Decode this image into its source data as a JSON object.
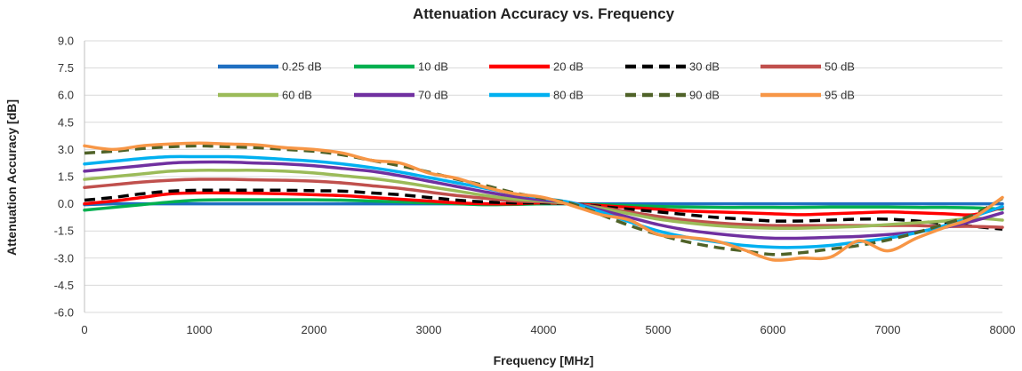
{
  "chart_data": {
    "type": "line",
    "title": "Attenuation Accuracy vs. Frequency",
    "xlabel": "Frequency [MHz]",
    "ylabel": "Attenuation Accuracy [dB]",
    "xlim": [
      0,
      8000
    ],
    "ylim": [
      -6.0,
      9.0
    ],
    "x_ticks": [
      "0",
      "1000",
      "2000",
      "3000",
      "4000",
      "5000",
      "6000",
      "7000",
      "8000"
    ],
    "y_ticks": [
      "9.0",
      "7.5",
      "6.0",
      "4.5",
      "3.0",
      "1.5",
      "0.0",
      "-1.5",
      "-3.0",
      "-4.5",
      "-6.0"
    ],
    "grid": "horizontal",
    "legend_position": "top-center",
    "x": [
      0,
      250,
      500,
      750,
      1000,
      1250,
      1500,
      1750,
      2000,
      2250,
      2500,
      2750,
      3000,
      3250,
      3500,
      3750,
      4000,
      4250,
      4500,
      4750,
      5000,
      5250,
      5500,
      5750,
      6000,
      6250,
      6500,
      6750,
      7000,
      7250,
      7500,
      7750,
      8000
    ],
    "series": [
      {
        "name": "0.25 dB",
        "color": "#1f6fc1",
        "dash": "solid",
        "values": [
          -0.05,
          0.0,
          0.0,
          0.0,
          0.0,
          0.0,
          0.0,
          0.0,
          0.0,
          0.0,
          0.0,
          0.0,
          0.0,
          0.0,
          0.0,
          0.0,
          0.0,
          0.0,
          0.0,
          0.0,
          0.0,
          0.0,
          0.0,
          0.0,
          0.0,
          0.0,
          0.0,
          0.0,
          0.0,
          0.0,
          0.0,
          0.0,
          0.0
        ]
      },
      {
        "name": "10 dB",
        "color": "#00b050",
        "dash": "solid",
        "values": [
          -0.35,
          -0.2,
          -0.05,
          0.1,
          0.2,
          0.22,
          0.22,
          0.22,
          0.22,
          0.2,
          0.15,
          0.1,
          0.05,
          0.0,
          -0.05,
          -0.03,
          0.0,
          0.0,
          -0.05,
          -0.1,
          -0.15,
          -0.18,
          -0.2,
          -0.2,
          -0.2,
          -0.2,
          -0.18,
          -0.18,
          -0.18,
          -0.2,
          -0.2,
          -0.22,
          -0.3
        ]
      },
      {
        "name": "20 dB",
        "color": "#ff0000",
        "dash": "solid",
        "values": [
          0.0,
          0.15,
          0.35,
          0.55,
          0.6,
          0.6,
          0.58,
          0.55,
          0.5,
          0.45,
          0.35,
          0.25,
          0.15,
          0.05,
          0.0,
          0.0,
          0.05,
          0.0,
          -0.1,
          -0.2,
          -0.3,
          -0.4,
          -0.45,
          -0.5,
          -0.55,
          -0.6,
          -0.55,
          -0.5,
          -0.45,
          -0.5,
          -0.55,
          -0.6,
          -0.2
        ]
      },
      {
        "name": "30 dB",
        "color": "#000000",
        "dash": "dash",
        "values": [
          0.2,
          0.35,
          0.55,
          0.7,
          0.75,
          0.75,
          0.75,
          0.75,
          0.72,
          0.7,
          0.6,
          0.5,
          0.35,
          0.2,
          0.1,
          0.05,
          0.05,
          0.0,
          -0.15,
          -0.3,
          -0.45,
          -0.6,
          -0.75,
          -0.85,
          -0.95,
          -0.95,
          -0.9,
          -0.85,
          -0.85,
          -0.95,
          -1.1,
          -1.25,
          -1.4
        ]
      },
      {
        "name": "50 dB",
        "color": "#c0504d",
        "dash": "solid",
        "values": [
          0.9,
          1.05,
          1.2,
          1.3,
          1.35,
          1.35,
          1.32,
          1.3,
          1.25,
          1.15,
          1.0,
          0.85,
          0.65,
          0.45,
          0.3,
          0.15,
          0.1,
          0.0,
          -0.2,
          -0.45,
          -0.7,
          -0.9,
          -1.05,
          -1.15,
          -1.2,
          -1.2,
          -1.2,
          -1.2,
          -1.2,
          -1.2,
          -1.25,
          -1.25,
          -1.3
        ]
      },
      {
        "name": "60 dB",
        "color": "#9bbb59",
        "dash": "solid",
        "values": [
          1.35,
          1.5,
          1.65,
          1.8,
          1.85,
          1.85,
          1.85,
          1.8,
          1.7,
          1.55,
          1.4,
          1.2,
          0.95,
          0.7,
          0.45,
          0.25,
          0.15,
          0.0,
          -0.25,
          -0.55,
          -0.85,
          -1.05,
          -1.2,
          -1.3,
          -1.35,
          -1.35,
          -1.3,
          -1.25,
          -1.15,
          -1.05,
          -0.95,
          -0.8,
          -0.9
        ]
      },
      {
        "name": "70 dB",
        "color": "#7030a0",
        "dash": "solid",
        "values": [
          1.8,
          1.95,
          2.1,
          2.25,
          2.3,
          2.3,
          2.25,
          2.2,
          2.1,
          1.95,
          1.8,
          1.55,
          1.25,
          0.95,
          0.65,
          0.4,
          0.2,
          0.05,
          -0.35,
          -0.75,
          -1.15,
          -1.45,
          -1.65,
          -1.8,
          -1.9,
          -1.9,
          -1.85,
          -1.8,
          -1.7,
          -1.55,
          -1.3,
          -0.95,
          -0.5
        ]
      },
      {
        "name": "80 dB",
        "color": "#00b0f0",
        "dash": "solid",
        "values": [
          2.2,
          2.35,
          2.5,
          2.6,
          2.6,
          2.6,
          2.55,
          2.45,
          2.35,
          2.2,
          2.0,
          1.75,
          1.45,
          1.15,
          0.85,
          0.55,
          0.3,
          0.05,
          -0.45,
          -1.0,
          -1.5,
          -1.85,
          -2.1,
          -2.3,
          -2.4,
          -2.4,
          -2.3,
          -2.1,
          -1.9,
          -1.6,
          -1.2,
          -0.7,
          -0.15
        ]
      },
      {
        "name": "90 dB",
        "color": "#4f6228",
        "dash": "dash",
        "values": [
          2.8,
          2.9,
          3.05,
          3.15,
          3.2,
          3.15,
          3.1,
          3.0,
          2.9,
          2.7,
          2.4,
          2.1,
          1.75,
          1.35,
          1.0,
          0.6,
          0.3,
          0.0,
          -0.6,
          -1.2,
          -1.7,
          -2.1,
          -2.4,
          -2.6,
          -2.8,
          -2.7,
          -2.5,
          -2.3,
          -2.0,
          -1.6,
          -1.1,
          -0.6,
          0.3
        ]
      },
      {
        "name": "95 dB",
        "color": "#f79646",
        "dash": "solid",
        "values": [
          3.2,
          3.0,
          3.2,
          3.3,
          3.35,
          3.3,
          3.25,
          3.1,
          3.0,
          2.8,
          2.4,
          2.25,
          1.7,
          1.4,
          0.9,
          0.55,
          0.35,
          -0.1,
          -0.6,
          -0.9,
          -1.7,
          -1.85,
          -2.05,
          -2.55,
          -3.1,
          -3.0,
          -2.95,
          -2.05,
          -2.6,
          -1.9,
          -1.3,
          -0.75,
          0.35
        ]
      }
    ]
  }
}
